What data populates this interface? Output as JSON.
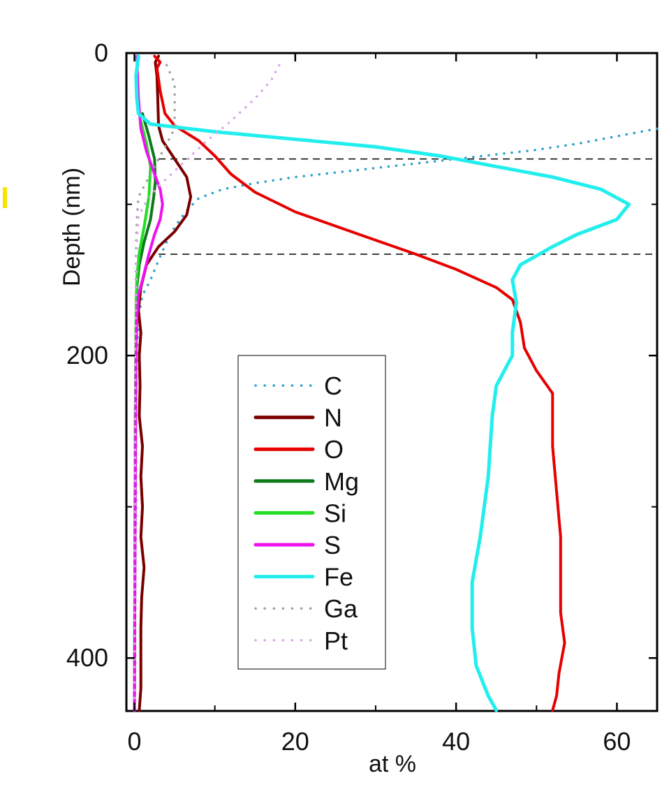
{
  "chart_data": {
    "type": "line",
    "orientation": "depth-profile (x = at %, y = depth, depth increasing downward)",
    "title": "",
    "xlabel": "at %",
    "ylabel": "Depth (nm)",
    "xlim": [
      -1,
      65
    ],
    "ylim": [
      0,
      435
    ],
    "x_ticks": [
      0,
      20,
      40,
      60
    ],
    "x_minor_ticks": [
      10,
      30,
      50
    ],
    "y_ticks": [
      0,
      200,
      400
    ],
    "y_minor_ticks": [
      100,
      300
    ],
    "grid": false,
    "legend_position": "center-left",
    "reference_lines": [
      {
        "depth": 70,
        "style": "dashed",
        "x_start": 3
      },
      {
        "depth": 133,
        "style": "dashed",
        "x_start": 3
      }
    ],
    "series": [
      {
        "name": "C",
        "color": "#2aa0d0",
        "style": "dotted",
        "points": [
          [
            65,
            50
          ],
          [
            60,
            55
          ],
          [
            55,
            60
          ],
          [
            50,
            64
          ],
          [
            45,
            67
          ],
          [
            40,
            70
          ],
          [
            35,
            73
          ],
          [
            30,
            76
          ],
          [
            25,
            79
          ],
          [
            20,
            82
          ],
          [
            15,
            86
          ],
          [
            11,
            90
          ],
          [
            8,
            96
          ],
          [
            6.5,
            104
          ],
          [
            5,
            115
          ],
          [
            4,
            125
          ],
          [
            3,
            137
          ],
          [
            2,
            150
          ],
          [
            1,
            160
          ],
          [
            0.5,
            175
          ],
          [
            0.3,
            200
          ],
          [
            0.2,
            250
          ],
          [
            0.2,
            300
          ],
          [
            0.1,
            350
          ],
          [
            0.1,
            400
          ],
          [
            0,
            435
          ]
        ]
      },
      {
        "name": "N",
        "color": "#7a0000",
        "style": "solid",
        "points": [
          [
            3,
            2
          ],
          [
            2.6,
            6
          ],
          [
            2.8,
            15
          ],
          [
            2.9,
            30
          ],
          [
            3,
            48
          ],
          [
            3.5,
            58
          ],
          [
            5,
            70
          ],
          [
            6.5,
            82
          ],
          [
            7,
            95
          ],
          [
            6.5,
            107
          ],
          [
            5,
            118
          ],
          [
            3,
            128
          ],
          [
            1.5,
            140
          ],
          [
            0.8,
            155
          ],
          [
            0.5,
            170
          ],
          [
            0.8,
            185
          ],
          [
            0.6,
            200
          ],
          [
            0.7,
            220
          ],
          [
            0.6,
            240
          ],
          [
            1,
            260
          ],
          [
            0.8,
            280
          ],
          [
            1,
            300
          ],
          [
            0.8,
            320
          ],
          [
            1.2,
            340
          ],
          [
            0.9,
            360
          ],
          [
            0.8,
            380
          ],
          [
            0.8,
            400
          ],
          [
            0.8,
            420
          ],
          [
            0.6,
            435
          ]
        ]
      },
      {
        "name": "O",
        "color": "#e60000",
        "style": "solid",
        "points": [
          [
            2.5,
            2
          ],
          [
            3.2,
            6
          ],
          [
            2.8,
            10
          ],
          [
            3.2,
            25
          ],
          [
            3.8,
            40
          ],
          [
            5,
            48
          ],
          [
            8,
            58
          ],
          [
            10,
            68
          ],
          [
            12,
            80
          ],
          [
            15,
            92
          ],
          [
            20,
            105
          ],
          [
            28,
            120
          ],
          [
            35,
            133
          ],
          [
            40,
            143
          ],
          [
            45,
            155
          ],
          [
            47,
            163
          ],
          [
            48,
            178
          ],
          [
            48.5,
            195
          ],
          [
            50,
            210
          ],
          [
            52,
            225
          ],
          [
            52,
            260
          ],
          [
            52.5,
            290
          ],
          [
            53,
            320
          ],
          [
            53,
            340
          ],
          [
            53,
            370
          ],
          [
            53.5,
            390
          ],
          [
            52.8,
            410
          ],
          [
            52.5,
            425
          ],
          [
            52,
            435
          ]
        ]
      },
      {
        "name": "Mg",
        "color": "#0a7a1a",
        "style": "solid",
        "points": [
          [
            1,
            40
          ],
          [
            1.8,
            55
          ],
          [
            2.5,
            70
          ],
          [
            2.6,
            85
          ],
          [
            2.4,
            95
          ],
          [
            2,
            110
          ],
          [
            1.2,
            125
          ],
          [
            0.6,
            140
          ],
          [
            0.3,
            155
          ],
          [
            0.2,
            180
          ],
          [
            0.1,
            250
          ],
          [
            0,
            435
          ]
        ]
      },
      {
        "name": "Si",
        "color": "#22dd22",
        "style": "solid",
        "points": [
          [
            0.8,
            45
          ],
          [
            1.5,
            60
          ],
          [
            2,
            75
          ],
          [
            1.8,
            95
          ],
          [
            1.2,
            115
          ],
          [
            0.6,
            132
          ],
          [
            0.3,
            148
          ],
          [
            0.2,
            170
          ],
          [
            0.1,
            250
          ],
          [
            0,
            435
          ]
        ]
      },
      {
        "name": "S",
        "color": "#ee11ee",
        "style": "solid",
        "points": [
          [
            0.3,
            2
          ],
          [
            0.5,
            30
          ],
          [
            0.8,
            50
          ],
          [
            1.5,
            65
          ],
          [
            2.5,
            80
          ],
          [
            3.2,
            90
          ],
          [
            3.5,
            100
          ],
          [
            3.2,
            110
          ],
          [
            2.5,
            120
          ],
          [
            1.8,
            133
          ],
          [
            1,
            150
          ],
          [
            0.5,
            160
          ],
          [
            0.3,
            175
          ],
          [
            0.2,
            200
          ],
          [
            0.1,
            300
          ],
          [
            0,
            435
          ]
        ]
      },
      {
        "name": "Fe",
        "color": "#22eeee",
        "style": "solid",
        "points": [
          [
            0.5,
            2
          ],
          [
            0.2,
            15
          ],
          [
            0.3,
            30
          ],
          [
            0.5,
            40
          ],
          [
            2,
            47
          ],
          [
            10,
            52
          ],
          [
            20,
            57
          ],
          [
            30,
            62
          ],
          [
            38,
            68
          ],
          [
            45,
            75
          ],
          [
            52,
            82
          ],
          [
            58,
            90
          ],
          [
            61.5,
            100
          ],
          [
            60,
            110
          ],
          [
            55,
            120
          ],
          [
            52,
            128
          ],
          [
            48,
            140
          ],
          [
            47,
            150
          ],
          [
            47.5,
            165
          ],
          [
            47,
            185
          ],
          [
            47,
            200
          ],
          [
            45,
            220
          ],
          [
            44.5,
            240
          ],
          [
            44,
            280
          ],
          [
            43,
            320
          ],
          [
            42,
            350
          ],
          [
            42,
            380
          ],
          [
            42.5,
            405
          ],
          [
            44,
            425
          ],
          [
            45,
            435
          ]
        ]
      },
      {
        "name": "Ga",
        "color": "#a0a0a0",
        "style": "dotted",
        "points": [
          [
            4,
            8
          ],
          [
            5,
            20
          ],
          [
            5,
            35
          ],
          [
            5,
            50
          ],
          [
            4,
            60
          ],
          [
            3,
            70
          ],
          [
            1.5,
            85
          ],
          [
            0.5,
            95
          ],
          [
            0.3,
            110
          ],
          [
            0.2,
            130
          ],
          [
            0.1,
            200
          ],
          [
            0,
            435
          ]
        ]
      },
      {
        "name": "Pt",
        "color": "#d9a8e8",
        "style": "dotted",
        "points": [
          [
            18,
            8
          ],
          [
            17,
            18
          ],
          [
            15,
            30
          ],
          [
            12,
            45
          ],
          [
            9,
            58
          ],
          [
            7,
            68
          ],
          [
            5,
            78
          ],
          [
            3,
            88
          ],
          [
            1.5,
            98
          ],
          [
            0.5,
            108
          ],
          [
            0.3,
            125
          ],
          [
            0.1,
            200
          ],
          [
            0,
            435
          ]
        ]
      }
    ]
  }
}
